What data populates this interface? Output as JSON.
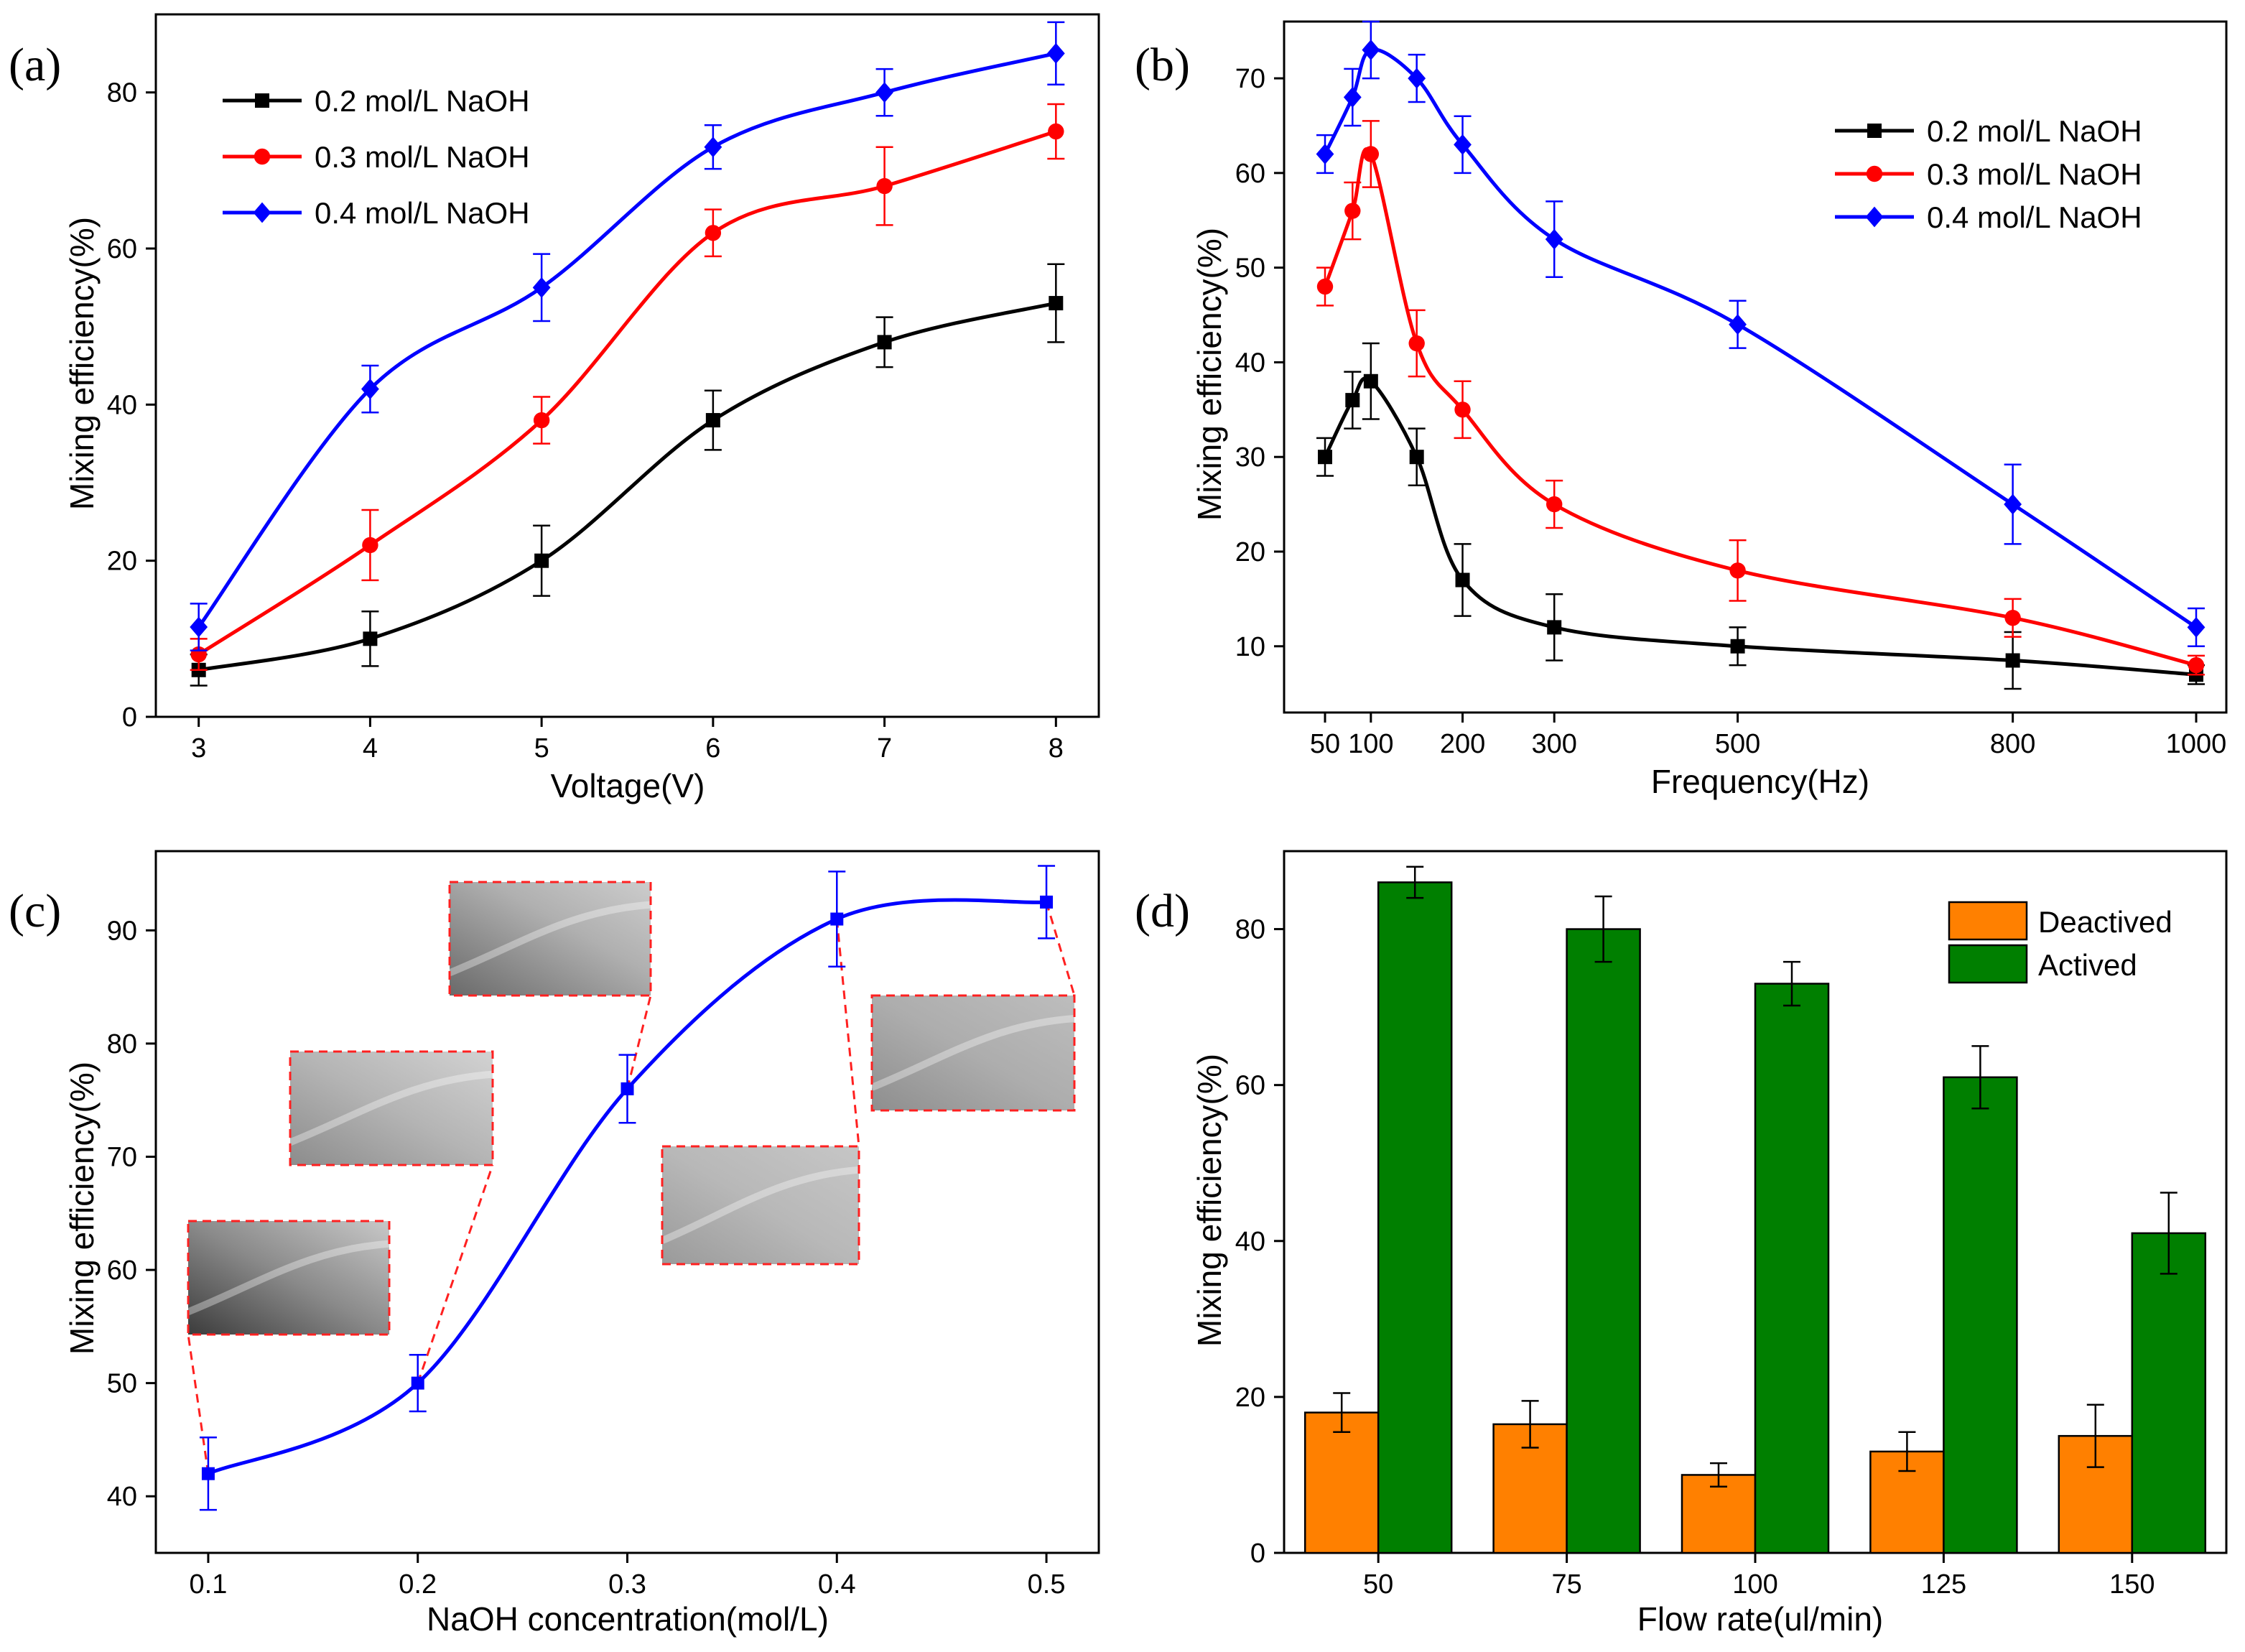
{
  "colors": {
    "black": "#000000",
    "red": "#ff0000",
    "blue": "#0000ff",
    "orange": "#ff8000",
    "green": "#007f00",
    "inset_border": "#ff2020"
  },
  "chart_data": [
    {
      "panel": "(a)",
      "type": "line",
      "xlabel": "Voltage(V)",
      "ylabel": "Mixing efficiency(%)",
      "xlim": [
        2.75,
        8.25
      ],
      "ylim": [
        0,
        90
      ],
      "x_ticks": [
        3,
        4,
        5,
        6,
        7,
        8
      ],
      "y_ticks": [
        0,
        20,
        40,
        60,
        80
      ],
      "legend_position": "top-left",
      "x": [
        3,
        4,
        5,
        6,
        7,
        8
      ],
      "series": [
        {
          "name": "0.2 mol/L NaOH",
          "color": "#000000",
          "marker": "square",
          "values": [
            6,
            10,
            20,
            38,
            48,
            53
          ],
          "errors": [
            2,
            3.5,
            4.5,
            3.8,
            3.2,
            5
          ]
        },
        {
          "name": "0.3 mol/L NaOH",
          "color": "#ff0000",
          "marker": "circle",
          "values": [
            8,
            22,
            38,
            62,
            68,
            75
          ],
          "errors": [
            2,
            4.5,
            3,
            3,
            5,
            3.5
          ]
        },
        {
          "name": "0.4 mol/L NaOH",
          "color": "#0000ff",
          "marker": "diamond",
          "values": [
            11.5,
            42,
            55,
            73,
            80,
            85
          ],
          "errors": [
            3,
            3,
            4.3,
            2.8,
            3,
            4
          ]
        }
      ]
    },
    {
      "panel": "(b)",
      "type": "line",
      "xlabel": "Frequency(Hz)",
      "ylabel": "Mixing efficiency(%)",
      "xlim": [
        0,
        1020
      ],
      "ylim": [
        3,
        76
      ],
      "x_ticks": [
        50,
        100,
        200,
        300,
        500,
        800,
        1000
      ],
      "y_ticks": [
        10,
        20,
        30,
        40,
        50,
        60,
        70
      ],
      "legend_position": "top-right",
      "series": [
        {
          "name": "0.2 mol/L NaOH",
          "color": "#000000",
          "marker": "square",
          "x": [
            50,
            80,
            100,
            150,
            200,
            300,
            500,
            800,
            1000
          ],
          "values": [
            30,
            36,
            38,
            30,
            17,
            12,
            10,
            8.5,
            7
          ],
          "errors": [
            2,
            3,
            4,
            3,
            3.8,
            3.5,
            2,
            3,
            1
          ]
        },
        {
          "name": "0.3 mol/L NaOH",
          "color": "#ff0000",
          "marker": "circle",
          "x": [
            50,
            80,
            100,
            150,
            200,
            300,
            500,
            800,
            1000
          ],
          "values": [
            48,
            56,
            62,
            42,
            35,
            25,
            18,
            13,
            8
          ],
          "errors": [
            2,
            3,
            3.5,
            3.5,
            3,
            2.5,
            3.2,
            2,
            1
          ]
        },
        {
          "name": "0.4 mol/L NaOH",
          "color": "#0000ff",
          "marker": "diamond",
          "x": [
            50,
            80,
            100,
            150,
            200,
            300,
            500,
            800,
            1000
          ],
          "values": [
            62,
            68,
            73,
            70,
            63,
            53,
            44,
            25,
            12
          ],
          "errors": [
            2,
            3,
            3,
            2.5,
            3,
            4,
            2.5,
            4.2,
            2
          ]
        }
      ]
    },
    {
      "panel": "(c)",
      "type": "line",
      "xlabel": "NaOH concentration(mol/L)",
      "ylabel": "Mixing efficiency(%)",
      "xlim": [
        0.075,
        0.525
      ],
      "ylim": [
        35,
        97
      ],
      "x_ticks": [
        "0.1",
        "0.2",
        "0.3",
        "0.4",
        "0.5"
      ],
      "y_ticks": [
        40,
        50,
        60,
        70,
        80,
        90
      ],
      "x": [
        0.1,
        0.2,
        0.3,
        0.4,
        0.5
      ],
      "series": [
        {
          "name": "",
          "color": "#0000ff",
          "marker": "square",
          "values": [
            42,
            50,
            76,
            91,
            92.5
          ],
          "errors": [
            3.2,
            2.5,
            3,
            4.2,
            3.2
          ]
        }
      ],
      "insets": [
        "micrograph at 0.1 mol/L",
        "micrograph at 0.2 mol/L",
        "micrograph at 0.3 mol/L",
        "micrograph at 0.4 mol/L",
        "micrograph at 0.5 mol/L"
      ]
    },
    {
      "panel": "(d)",
      "type": "bar",
      "xlabel": "Flow rate(ul/min)",
      "ylabel": "Mixing efficiency(%)",
      "ylim": [
        0,
        90
      ],
      "y_ticks": [
        0,
        20,
        40,
        60,
        80
      ],
      "categories": [
        "50",
        "75",
        "100",
        "125",
        "150"
      ],
      "legend_position": "top-right",
      "series": [
        {
          "name": "Deactived",
          "color": "#ff8000",
          "values": [
            18,
            16.5,
            10,
            13,
            15
          ],
          "errors": [
            2.5,
            3,
            1.5,
            2.5,
            4
          ]
        },
        {
          "name": "Actived",
          "color": "#007f00",
          "values": [
            86,
            80,
            73,
            61,
            41
          ],
          "errors": [
            2,
            4.2,
            2.8,
            4,
            5.2
          ]
        }
      ]
    }
  ]
}
